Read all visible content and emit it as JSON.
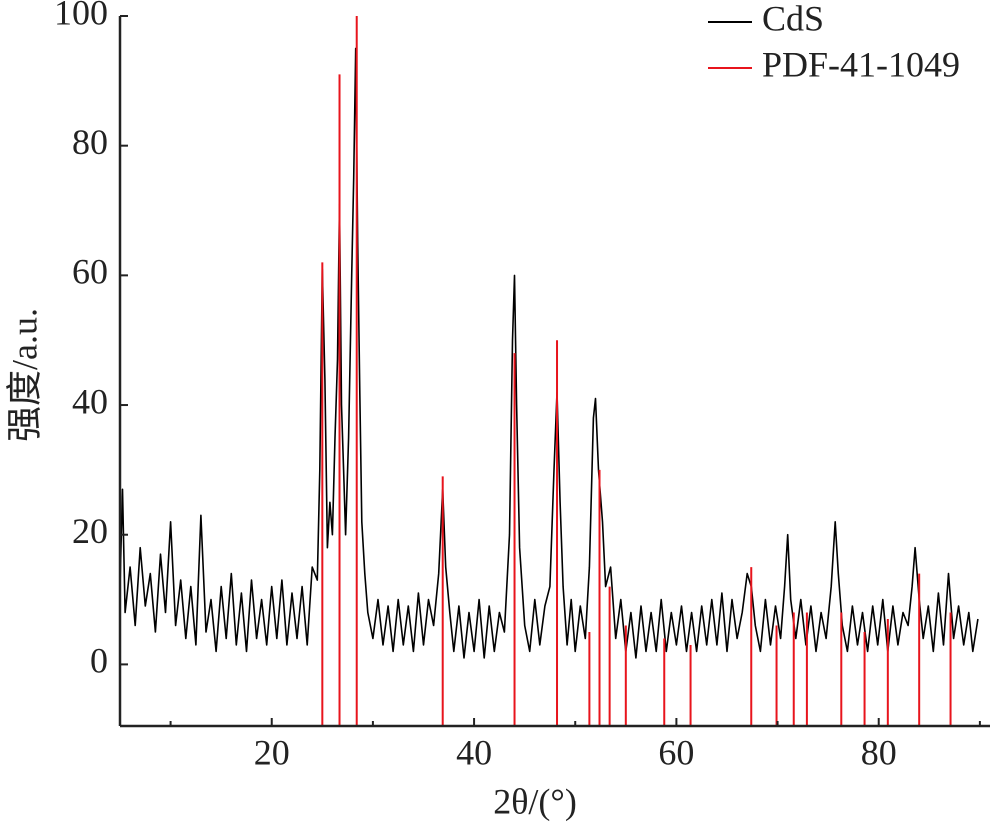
{
  "chart_data": {
    "type": "line",
    "xlabel": "2θ/(°)",
    "ylabel": "强度/a.u.",
    "xlim": [
      5,
      91
    ],
    "ylim": [
      -9.5,
      100
    ],
    "xticks": [
      20,
      40,
      60,
      80
    ],
    "xminorticks": [
      10,
      30,
      50,
      70,
      90
    ],
    "yticks": [
      0,
      20,
      40,
      60,
      80,
      100
    ],
    "legend": "upper right",
    "series": [
      {
        "name": "CdS",
        "color": "#000000",
        "style": "line",
        "x": [
          5,
          5.25,
          5.5,
          6,
          6.5,
          7,
          7.5,
          8,
          8.5,
          9,
          9.5,
          10,
          10.5,
          11,
          11.5,
          12,
          12.5,
          13,
          13.5,
          14,
          14.5,
          15,
          15.5,
          16,
          16.5,
          17,
          17.5,
          18,
          18.5,
          19,
          19.5,
          20,
          20.5,
          21,
          21.5,
          22,
          22.5,
          23,
          23.5,
          24,
          24.5,
          24.75,
          25,
          25.25,
          25.5,
          25.75,
          26,
          26.25,
          26.5,
          26.7,
          26.9,
          27.1,
          27.3,
          27.6,
          27.9,
          28.1,
          28.3,
          28.5,
          28.7,
          28.9,
          29.2,
          29.5,
          30,
          30.5,
          31,
          31.5,
          32,
          32.5,
          33,
          33.5,
          34,
          34.5,
          35,
          35.5,
          36,
          36.5,
          36.9,
          37.2,
          37.6,
          38,
          38.5,
          39,
          39.5,
          40,
          40.5,
          41,
          41.5,
          42,
          42.5,
          43,
          43.5,
          43.8,
          44,
          44.2,
          44.5,
          45,
          45.5,
          46,
          46.5,
          47,
          47.5,
          47.9,
          48.2,
          48.5,
          48.8,
          49.2,
          49.6,
          50,
          50.5,
          51,
          51.4,
          51.8,
          52,
          52.3,
          52.7,
          53,
          53.5,
          54,
          54.5,
          55,
          55.5,
          56,
          56.5,
          57,
          57.5,
          58,
          58.5,
          59,
          59.5,
          60,
          60.5,
          61,
          61.5,
          62,
          62.5,
          63,
          63.5,
          64,
          64.5,
          65,
          65.5,
          66,
          66.5,
          67,
          67.4,
          67.8,
          68.3,
          68.8,
          69.3,
          69.8,
          70.3,
          70.7,
          71,
          71.3,
          71.8,
          72.3,
          72.8,
          73.3,
          73.8,
          74.3,
          74.8,
          75.3,
          75.7,
          76,
          76.4,
          76.9,
          77.4,
          77.9,
          78.4,
          78.9,
          79.4,
          79.9,
          80.4,
          80.9,
          81.4,
          81.9,
          82.4,
          82.9,
          83.3,
          83.6,
          84,
          84.4,
          84.9,
          85.4,
          85.9,
          86.4,
          86.9,
          87.4,
          87.9,
          88.4,
          88.9,
          89.3,
          89.8
        ],
        "values": [
          12,
          27,
          8,
          15,
          6,
          18,
          9,
          14,
          5,
          17,
          8,
          22,
          6,
          13,
          4,
          12,
          3,
          23,
          5,
          10,
          2,
          12,
          4,
          14,
          3,
          11,
          2,
          13,
          4,
          10,
          3,
          12,
          4,
          13,
          3,
          11,
          4,
          12,
          3,
          15,
          13,
          30,
          61,
          44,
          18,
          25,
          20,
          35,
          47,
          71,
          40,
          30,
          20,
          35,
          60,
          75,
          95,
          65,
          42,
          22,
          14,
          8,
          4,
          10,
          3,
          9,
          2,
          10,
          3,
          9,
          2,
          11,
          3,
          10,
          6,
          14,
          27,
          15,
          8,
          2,
          9,
          1,
          8,
          2,
          10,
          1,
          9,
          2,
          8,
          5,
          20,
          50,
          60,
          40,
          18,
          6,
          2,
          10,
          3,
          9,
          12,
          30,
          42,
          25,
          12,
          3,
          10,
          2,
          9,
          4,
          15,
          38,
          41,
          30,
          22,
          12,
          15,
          4,
          10,
          2,
          8,
          1,
          9,
          2,
          8,
          2,
          10,
          2,
          8,
          3,
          9,
          2,
          8,
          2,
          9,
          3,
          10,
          3,
          11,
          2,
          10,
          4,
          8,
          14,
          12,
          6,
          2,
          10,
          3,
          9,
          4,
          12,
          20,
          10,
          4,
          10,
          3,
          9,
          2,
          8,
          4,
          12,
          22,
          14,
          6,
          2,
          9,
          3,
          8,
          2,
          9,
          3,
          10,
          2,
          9,
          3,
          8,
          6,
          12,
          18,
          10,
          4,
          9,
          2,
          11,
          3,
          14,
          4,
          9,
          3,
          8,
          2,
          7
        ]
      },
      {
        "name": "PDF-41-1049",
        "color": "#e8141c",
        "style": "stick",
        "x": [
          25.0,
          26.7,
          28.4,
          36.9,
          44.0,
          48.2,
          51.4,
          52.4,
          53.4,
          55.0,
          58.8,
          61.4,
          67.4,
          69.9,
          71.6,
          72.9,
          76.3,
          78.6,
          80.9,
          84.0,
          87.1
        ],
        "values": [
          62,
          91,
          100,
          29,
          48,
          50,
          5,
          30,
          12,
          6,
          4,
          3,
          15,
          6,
          8,
          8,
          8,
          5,
          7,
          14,
          8
        ]
      }
    ]
  }
}
